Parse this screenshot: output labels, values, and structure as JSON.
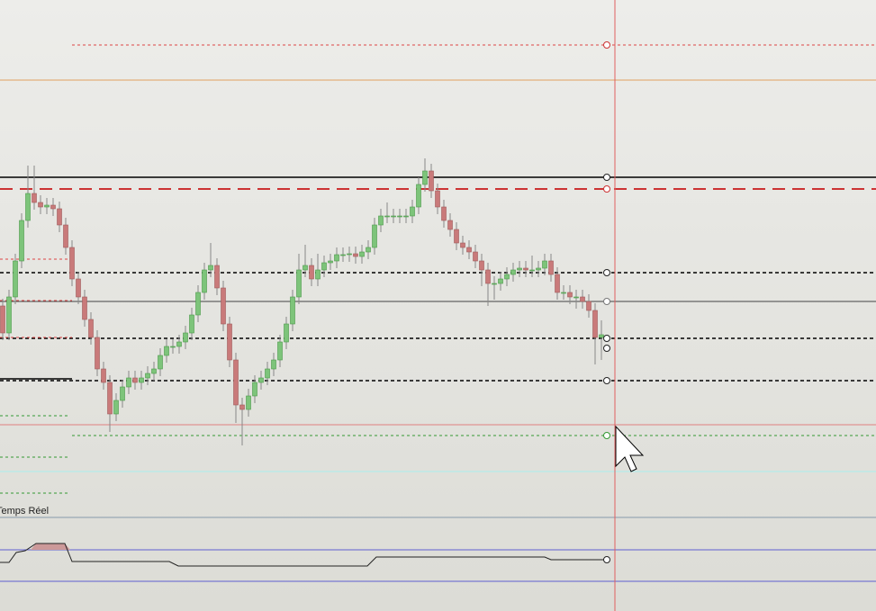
{
  "chart_data": {
    "type": "candlestick",
    "label": "Temps Réel",
    "ylim": [
      0,
      679
    ],
    "colors": {
      "up": "#7dc47a",
      "down": "#c97a7a"
    },
    "categories": [
      null,
      null,
      null,
      null,
      null,
      null,
      null,
      null,
      null,
      null,
      null,
      null,
      null,
      null,
      null,
      null,
      null,
      null,
      null,
      null,
      null,
      null,
      null,
      null,
      null,
      null,
      null,
      null,
      null,
      null,
      null,
      null,
      null,
      null,
      null,
      null,
      null,
      null,
      null,
      null,
      null,
      null,
      null,
      null,
      null,
      null,
      null,
      null,
      null,
      null,
      null,
      null,
      null,
      null,
      null,
      null,
      null,
      null,
      null,
      null,
      null,
      null,
      null,
      null,
      null,
      null,
      null,
      null,
      null,
      null,
      null,
      null,
      null,
      null,
      null,
      null,
      null,
      null,
      null,
      null,
      null,
      null,
      null,
      null,
      null,
      null,
      null,
      null,
      null,
      null,
      null,
      null,
      null,
      null,
      null,
      null
    ],
    "open": [
      339,
      309,
      349,
      389,
      434,
      464,
      454,
      449,
      451,
      447,
      429,
      404,
      369,
      349,
      324,
      304,
      269,
      254,
      219,
      234,
      249,
      259,
      254,
      259,
      264,
      269,
      284,
      294,
      294,
      299,
      309,
      329,
      354,
      379,
      384,
      359,
      319,
      279,
      229,
      224,
      239,
      254,
      259,
      269,
      279,
      299,
      319,
      349,
      379,
      384,
      369,
      379,
      387,
      389,
      396,
      396,
      397,
      394,
      399,
      404,
      429,
      439,
      439,
      439,
      439,
      439,
      449,
      474,
      489,
      467,
      449,
      434,
      424,
      409,
      404,
      399,
      389,
      379,
      364,
      364,
      369,
      374,
      379,
      381,
      379,
      379,
      381,
      389,
      374,
      354,
      354,
      349,
      349,
      344,
      334,
      304
    ],
    "high": [
      347,
      357,
      397,
      442,
      495,
      495,
      462,
      459,
      459,
      455,
      437,
      412,
      377,
      357,
      332,
      312,
      277,
      262,
      242,
      257,
      267,
      267,
      267,
      272,
      277,
      292,
      302,
      302,
      307,
      317,
      337,
      362,
      387,
      409,
      392,
      367,
      327,
      287,
      237,
      247,
      262,
      267,
      277,
      287,
      307,
      327,
      357,
      397,
      407,
      392,
      397,
      395,
      397,
      404,
      404,
      405,
      405,
      407,
      412,
      437,
      447,
      454,
      447,
      447,
      447,
      457,
      482,
      503,
      497,
      475,
      457,
      442,
      432,
      417,
      412,
      407,
      397,
      387,
      372,
      377,
      382,
      387,
      389,
      389,
      395,
      389,
      397,
      397,
      382,
      362,
      362,
      357,
      357,
      352,
      342,
      323
    ],
    "low": [
      301,
      301,
      341,
      381,
      426,
      446,
      441,
      441,
      439,
      421,
      396,
      361,
      341,
      316,
      296,
      261,
      246,
      199,
      211,
      226,
      241,
      246,
      246,
      251,
      256,
      261,
      276,
      286,
      286,
      291,
      301,
      321,
      346,
      371,
      351,
      311,
      271,
      209,
      184,
      216,
      231,
      246,
      251,
      261,
      271,
      291,
      311,
      341,
      371,
      361,
      361,
      371,
      379,
      381,
      388,
      388,
      386,
      386,
      391,
      396,
      421,
      431,
      431,
      431,
      431,
      431,
      441,
      466,
      459,
      441,
      426,
      416,
      401,
      396,
      391,
      381,
      361,
      339,
      346,
      356,
      361,
      366,
      371,
      371,
      371,
      371,
      373,
      366,
      346,
      346,
      341,
      336,
      336,
      326,
      274,
      279
    ],
    "close": [
      309,
      349,
      389,
      434,
      464,
      454,
      449,
      451,
      447,
      429,
      404,
      369,
      349,
      324,
      304,
      269,
      254,
      219,
      234,
      249,
      259,
      254,
      259,
      264,
      269,
      284,
      294,
      294,
      299,
      309,
      329,
      354,
      379,
      384,
      359,
      319,
      279,
      229,
      224,
      239,
      254,
      259,
      269,
      279,
      299,
      319,
      349,
      379,
      384,
      369,
      379,
      387,
      389,
      396,
      396,
      397,
      394,
      399,
      404,
      429,
      439,
      439,
      439,
      439,
      439,
      449,
      474,
      489,
      467,
      449,
      434,
      424,
      409,
      404,
      399,
      389,
      379,
      364,
      364,
      369,
      374,
      379,
      381,
      379,
      379,
      381,
      389,
      374,
      354,
      354,
      349,
      349,
      344,
      334,
      304,
      307
    ]
  }
}
